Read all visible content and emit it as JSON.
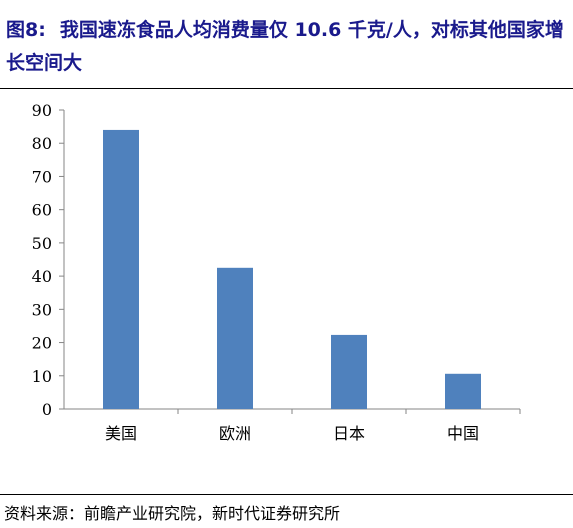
{
  "figure": {
    "number": "图8:",
    "title": "我国速冻食品人均消费量仅 10.6 千克/人，对标其他国家增长空间大",
    "source": "资料来源：前瞻产业研究院，新时代证券研究所"
  },
  "chart_data": {
    "type": "bar",
    "categories": [
      "美国",
      "欧洲",
      "日本",
      "中国"
    ],
    "values": [
      84,
      42.5,
      22.3,
      10.6
    ],
    "yticks": [
      0,
      10,
      20,
      30,
      40,
      50,
      60,
      70,
      80,
      90
    ],
    "ylim": [
      0,
      90
    ],
    "grid": false,
    "legend": "none",
    "bar_color": "#4f81bd"
  }
}
